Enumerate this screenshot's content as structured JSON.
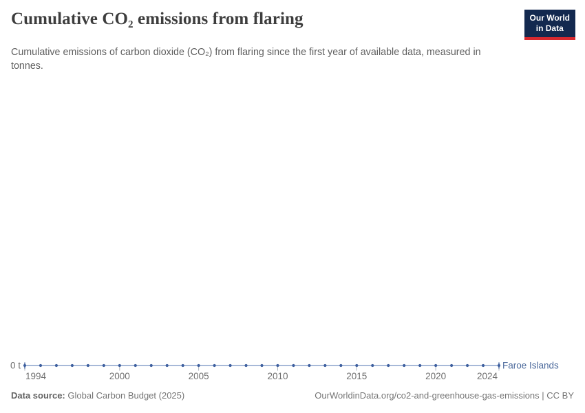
{
  "header": {
    "title": "Cumulative CO₂ emissions from flaring",
    "subtitle": "Cumulative emissions of carbon dioxide (CO₂) from flaring since the first year of available data, measured in tonnes.",
    "logo": {
      "line1": "Our World",
      "line2": "in Data",
      "bg_color": "#13294f",
      "accent_color": "#d8292f"
    }
  },
  "chart_data": {
    "type": "line",
    "title": "Cumulative CO₂ emissions from flaring",
    "xlabel": "",
    "ylabel": "tonnes",
    "x_range": [
      1994,
      2024
    ],
    "x_ticks": [
      1994,
      2000,
      2005,
      2010,
      2015,
      2020,
      2024
    ],
    "y_tick_label": "0 t",
    "y_min": 0,
    "grid": false,
    "legend_position": "end-of-line",
    "axis": {
      "tick_color": "#a9b1bd",
      "label_color": "#6e6e6e"
    },
    "series": [
      {
        "name": "Faroe Islands",
        "color": "#4c6a9c",
        "line_color": "#8aa2cb",
        "marker_color": "#3f609f",
        "x": [
          1994,
          1995,
          1996,
          1997,
          1998,
          1999,
          2000,
          2001,
          2002,
          2003,
          2004,
          2005,
          2006,
          2007,
          2008,
          2009,
          2010,
          2011,
          2012,
          2013,
          2014,
          2015,
          2016,
          2017,
          2018,
          2019,
          2020,
          2021,
          2022,
          2023,
          2024
        ],
        "values": [
          0,
          0,
          0,
          0,
          0,
          0,
          0,
          0,
          0,
          0,
          0,
          0,
          0,
          0,
          0,
          0,
          0,
          0,
          0,
          0,
          0,
          0,
          0,
          0,
          0,
          0,
          0,
          0,
          0,
          0,
          0
        ]
      }
    ]
  },
  "footer": {
    "source_label": "Data source:",
    "source_value": "Global Carbon Budget (2025)",
    "attribution": "OurWorldinData.org/co2-and-greenhouse-gas-emissions | CC BY"
  }
}
